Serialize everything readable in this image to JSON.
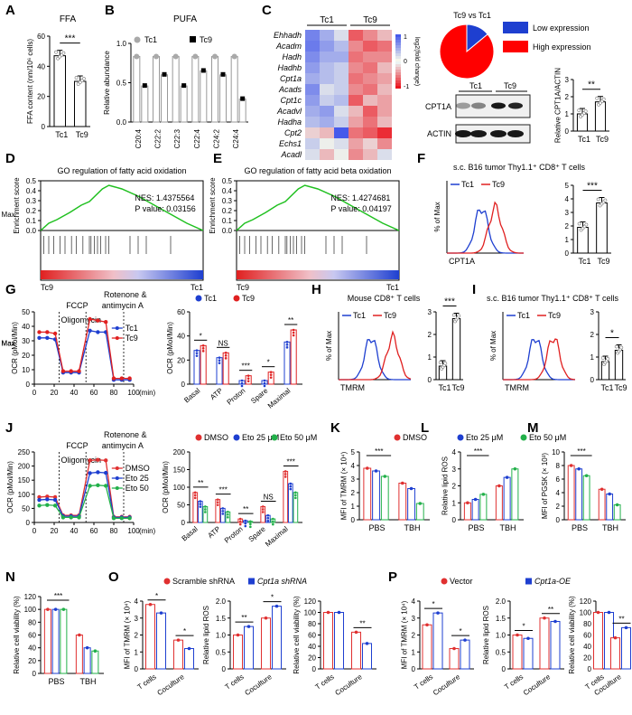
{
  "colors": {
    "tc1": "#1e3fd0",
    "tc9": "#e02020",
    "dmso": "#e03030",
    "eto25": "#1e3fd0",
    "eto50": "#22b04a",
    "gsea_line": "#20c020",
    "bar_gray": "#a9a9a9"
  },
  "panel_labels": [
    "A",
    "B",
    "C",
    "D",
    "E",
    "F",
    "G",
    "H",
    "I",
    "J",
    "K",
    "L",
    "M",
    "N",
    "O",
    "P"
  ],
  "panelA": {
    "title": "FFA",
    "ylabel": "FFA content (nm/10⁶ cells)",
    "yticks": [
      "0",
      "20",
      "40",
      "60"
    ],
    "categories": [
      "Tc1",
      "Tc9"
    ],
    "values": [
      47,
      30
    ],
    "ylim": [
      0,
      60
    ],
    "sig": "***"
  },
  "panelB": {
    "title": "PUFA",
    "ylabel": "Relative abundance",
    "yticks": [
      "0.0",
      "0.5",
      "1.0"
    ],
    "legend": [
      "Tc1",
      "Tc9"
    ],
    "categories": [
      "C20:4",
      "C22:2",
      "C22:3",
      "C22:4",
      "C24:2",
      "C24:4"
    ],
    "tc1": [
      1,
      1,
      1,
      1,
      1,
      1
    ],
    "tc9": [
      0.55,
      0.72,
      0.55,
      0.78,
      0.72,
      0.35
    ],
    "ylim": [
      0,
      1.2
    ]
  },
  "panelC": {
    "headers": [
      "Tc1",
      "Tc9"
    ],
    "genes": [
      "Ehhadh",
      "Acadm",
      "Hadh",
      "Hadhb",
      "Cpt1a",
      "Acads",
      "Cpt1c",
      "Acadvl",
      "Hadha",
      "Cpt2",
      "Echs1",
      "Acadl"
    ],
    "scale_label": "log2(fold change)",
    "scale_ticks": [
      "1",
      "0",
      "-1"
    ],
    "matrix": [
      [
        0.75,
        0.5,
        0.2,
        -0.7,
        -0.5,
        -0.3
      ],
      [
        0.8,
        0.6,
        0.4,
        -0.5,
        -0.7,
        -0.6
      ],
      [
        0.7,
        0.5,
        0.5,
        -0.6,
        -0.5,
        -0.5
      ],
      [
        0.6,
        0.4,
        0.3,
        -0.5,
        -0.6,
        -0.3
      ],
      [
        0.5,
        0.4,
        0.3,
        -0.6,
        -0.5,
        -0.4
      ],
      [
        0.7,
        0.2,
        0.3,
        -0.5,
        -0.6,
        -0.3
      ],
      [
        0.6,
        0.3,
        0.4,
        -0.7,
        -0.3,
        -0.4
      ],
      [
        0.5,
        0.6,
        0.2,
        -0.3,
        -0.7,
        -0.4
      ],
      [
        0.4,
        0.5,
        0.3,
        -0.4,
        -0.6,
        -0.3
      ],
      [
        -0.2,
        -0.3,
        1.0,
        -0.6,
        -0.7,
        -0.9
      ],
      [
        0.3,
        0.1,
        0.2,
        -0.4,
        -0.2,
        -0.5
      ],
      [
        0.2,
        -0.3,
        0.1,
        -0.5,
        -0.3,
        0.2
      ]
    ]
  },
  "panelC_pie": {
    "title": "Tc9 vs Tc1",
    "slices": [
      {
        "label": "Low expression",
        "value": 14
      },
      {
        "label": "High expression",
        "value": 86
      }
    ]
  },
  "panelC_blot": {
    "headers": [
      "Tc1",
      "Tc9"
    ],
    "rows": [
      "CPT1A",
      "ACTIN"
    ]
  },
  "panelC_bar": {
    "ylabel": "Relative CPT1A/ACTIN",
    "yticks": [
      "0",
      "1",
      "2",
      "3"
    ],
    "categories": [
      "Tc1",
      "Tc9"
    ],
    "values": [
      1.0,
      1.7
    ],
    "ylim": [
      0,
      3
    ],
    "sig": "**"
  },
  "panelD": {
    "title": "GO regulation of fatty acid oxidation",
    "ylabel": "Enrichment score",
    "yticks": [
      "0.0",
      "0.1",
      "0.2",
      "0.3",
      "0.4",
      "0.5"
    ],
    "nes": "NES: 1.4375564",
    "pvalue": "P value: 0.03156",
    "left": "Tc9",
    "right": "Tc1"
  },
  "panelE": {
    "title": "GO regulation of fatty acid beta oxidation",
    "ylabel": "Enrichment score",
    "yticks": [
      "0.0",
      "0.1",
      "0.2",
      "0.3",
      "0.4",
      "0.5"
    ],
    "nes": "NES: 1.4274681",
    "pvalue": "P value: 0.04197",
    "left": "Tc9",
    "right": "Tc1"
  },
  "panelF": {
    "title": "s.c. B16 tumor Thy1.1⁺ CD8⁺ T cells",
    "hist_ylabel": "% of Max",
    "hist_xlabel": "CPT1A",
    "legend": [
      "Tc1",
      "Tc9"
    ],
    "bar_ylabel": "MFI of CPT1A (× 10³)",
    "yticks": [
      "0",
      "1",
      "2",
      "3",
      "4",
      "5"
    ],
    "categories": [
      "Tc1",
      "Tc9"
    ],
    "values": [
      1.9,
      3.7
    ],
    "ylim": [
      0,
      5
    ],
    "sig": "***"
  },
  "panelG": {
    "ylabel": "OCR (pMol/Min)",
    "xlabel": "(min)",
    "yticks": [
      "0",
      "10",
      "20",
      "30",
      "40",
      "50"
    ],
    "xticks": [
      "0",
      "20",
      "40",
      "60",
      "80",
      "100"
    ],
    "annotations": [
      "Oligomycin",
      "FCCP",
      "Rotenone &",
      "antimycin A"
    ],
    "legend": [
      "Tc1",
      "Tc9"
    ],
    "x": [
      5,
      13,
      21,
      29,
      37,
      45,
      56,
      64,
      72,
      80,
      88,
      96
    ],
    "tc1": [
      32,
      32,
      31,
      8,
      8,
      8,
      37,
      36,
      36,
      3,
      3,
      3
    ],
    "tc9": [
      36,
      36,
      35,
      9,
      9,
      9,
      45,
      44,
      43,
      4,
      4,
      4
    ],
    "ylim": [
      0,
      50
    ]
  },
  "panelG_bar": {
    "ylabel": "OCR (pMol/Min)",
    "yticks": [
      "0",
      "20",
      "40",
      "60"
    ],
    "legend": [
      "Tc1",
      "Tc9"
    ],
    "categories": [
      "Basal",
      "ATP",
      "Proton",
      "Spare",
      "Maximal"
    ],
    "tc1": [
      28,
      22,
      3,
      3,
      35
    ],
    "tc9": [
      32,
      26,
      7,
      10,
      45
    ],
    "sig": [
      "*",
      "NS",
      "***",
      "*",
      "**"
    ],
    "ylim": [
      0,
      60
    ]
  },
  "panelH": {
    "title": "Mouse CD8⁺ T cells",
    "hist_ylabel": "% of Max",
    "hist_xlabel": "TMRM",
    "legend": [
      "Tc1",
      "Tc9"
    ],
    "bar_ylabel": "MFI of TMRM (× 10³)",
    "yticks": [
      "0",
      "1",
      "2",
      "3"
    ],
    "categories": [
      "Tc1",
      "Tc9"
    ],
    "values": [
      0.6,
      2.7
    ],
    "ylim": [
      0,
      3
    ],
    "sig": "***"
  },
  "panelI": {
    "title": "s.c. B16 tumor Thy1.1⁺ CD8⁺ T cells",
    "hist_ylabel": "% of Max",
    "hist_xlabel": "TMRM",
    "legend": [
      "Tc1",
      "Tc9"
    ],
    "bar_ylabel": "MFI of TMRM (× 10³)",
    "yticks": [
      "0",
      "1",
      "2",
      "3"
    ],
    "categories": [
      "Tc1",
      "Tc9"
    ],
    "values": [
      0.8,
      1.3
    ],
    "ylim": [
      0,
      3
    ],
    "sig": "*"
  },
  "panelJ": {
    "ylabel": "OCR (pMol/Min)",
    "xlabel": "(min)",
    "yticks": [
      "0",
      "50",
      "100",
      "150",
      "200",
      "250"
    ],
    "xticks": [
      "0",
      "20",
      "40",
      "60",
      "80",
      "100"
    ],
    "annotations": [
      "Oligomycin",
      "FCCP",
      "Rotenone &",
      "antimycin A"
    ],
    "legend": [
      "DMSO",
      "Eto 25",
      "Eto 50"
    ],
    "x": [
      5,
      13,
      21,
      29,
      37,
      45,
      56,
      64,
      72,
      80,
      88,
      96
    ],
    "dmso": [
      90,
      92,
      90,
      25,
      25,
      25,
      220,
      222,
      220,
      20,
      20,
      20
    ],
    "eto25": [
      80,
      82,
      80,
      22,
      22,
      22,
      175,
      178,
      176,
      18,
      18,
      18
    ],
    "eto50": [
      60,
      62,
      60,
      18,
      18,
      18,
      130,
      132,
      130,
      15,
      15,
      15
    ],
    "ylim": [
      0,
      250
    ]
  },
  "panelJ_bar": {
    "ylabel": "OCR (pMol/Min)",
    "yticks": [
      "0",
      "50",
      "100",
      "150",
      "200"
    ],
    "legend": [
      "DMSO",
      "Eto 25 μM",
      "Eto 50 μM"
    ],
    "categories": [
      "Basal",
      "ATP",
      "Proton",
      "Spare",
      "Maximal"
    ],
    "dmso": [
      85,
      65,
      10,
      45,
      145
    ],
    "eto25": [
      60,
      40,
      5,
      20,
      110
    ],
    "eto50": [
      45,
      30,
      3,
      10,
      85
    ],
    "sig": [
      "**",
      "***",
      "**",
      "NS",
      "***"
    ],
    "ylim": [
      0,
      200
    ]
  },
  "panelK": {
    "ylabel": "MFI of TMRM (× 10⁴)",
    "yticks": [
      "0",
      "1",
      "2",
      "3",
      "4",
      "5"
    ],
    "groups": [
      "PBS",
      "TBH"
    ],
    "dmso": [
      3.8,
      2.7
    ],
    "eto25": [
      3.6,
      2.3
    ],
    "eto50": [
      3.2,
      1.2
    ],
    "ylim": [
      0,
      5
    ],
    "sig": "***"
  },
  "panelKLM_legend": [
    "DMSO",
    "Eto 25 μM",
    "Eto 50 μM"
  ],
  "panelL": {
    "ylabel": "Relative lipid ROS",
    "yticks": [
      "0",
      "1",
      "2",
      "3",
      "4"
    ],
    "groups": [
      "PBS",
      "TBH"
    ],
    "dmso": [
      1.0,
      2.0
    ],
    "eto25": [
      1.2,
      2.5
    ],
    "eto50": [
      1.5,
      3.0
    ],
    "ylim": [
      0,
      4
    ],
    "sig": "***"
  },
  "panelM": {
    "ylabel": "MFI of PGSK (× 10³)",
    "yticks": [
      "0",
      "2",
      "4",
      "6",
      "8",
      "10"
    ],
    "groups": [
      "PBS",
      "TBH"
    ],
    "dmso": [
      8.0,
      4.5
    ],
    "eto25": [
      7.5,
      3.8
    ],
    "eto50": [
      6.5,
      2.2
    ],
    "ylim": [
      0,
      10
    ],
    "sig": "***"
  },
  "panelN": {
    "ylabel": "Relative cell viability (%)",
    "yticks": [
      "0",
      "20",
      "40",
      "60",
      "80",
      "100",
      "120"
    ],
    "groups": [
      "PBS",
      "TBH"
    ],
    "dmso": [
      100,
      60
    ],
    "eto25": [
      100,
      40
    ],
    "eto50": [
      100,
      35
    ],
    "ylim": [
      0,
      120
    ],
    "sig": "***"
  },
  "panelO": {
    "legend": [
      "Scramble shRNA",
      "Cpt1a shRNA"
    ],
    "charts": [
      {
        "ylabel": "MFI of TMRM (× 10⁴)",
        "yticks": [
          "0",
          "1",
          "2",
          "3",
          "4"
        ],
        "groups": [
          "T cells",
          "Coculture"
        ],
        "a": [
          3.8,
          1.7
        ],
        "b": [
          3.3,
          1.2
        ],
        "ylim": [
          0,
          4
        ],
        "sig": [
          "*",
          "*"
        ]
      },
      {
        "ylabel": "Relative lipid ROS",
        "yticks": [
          "0",
          "0.5",
          "1.0",
          "1.5",
          "2.0"
        ],
        "groups": [
          "T cells",
          "Coculture"
        ],
        "a": [
          1.0,
          1.5
        ],
        "b": [
          1.25,
          1.85
        ],
        "ylim": [
          0,
          2
        ],
        "sig": [
          "**",
          "*"
        ]
      },
      {
        "ylabel": "Relative cell viability (%)",
        "yticks": [
          "0",
          "20",
          "40",
          "60",
          "80",
          "100",
          "120"
        ],
        "groups": [
          "T cells",
          "Coculture"
        ],
        "a": [
          100,
          65
        ],
        "b": [
          100,
          45
        ],
        "ylim": [
          0,
          120
        ],
        "sig": [
          "",
          "**"
        ]
      }
    ]
  },
  "panelP": {
    "legend": [
      "Vector",
      "Cpt1a-OE"
    ],
    "charts": [
      {
        "ylabel": "MFI of TMRM (× 10⁴)",
        "yticks": [
          "0",
          "1",
          "2",
          "3",
          "4"
        ],
        "groups": [
          "T cells",
          "Coculture"
        ],
        "a": [
          2.6,
          1.2
        ],
        "b": [
          3.3,
          1.7
        ],
        "ylim": [
          0,
          4
        ],
        "sig": [
          "*",
          "*"
        ]
      },
      {
        "ylabel": "Relative lipid ROS",
        "yticks": [
          "0",
          "0.5",
          "1.0",
          "1.5",
          "2.0"
        ],
        "groups": [
          "T cells",
          "Coculture"
        ],
        "a": [
          1.0,
          1.5
        ],
        "b": [
          0.9,
          1.4
        ],
        "ylim": [
          0,
          2
        ],
        "sig": [
          "*",
          "**"
        ]
      },
      {
        "ylabel": "Relative cell viability (%)",
        "yticks": [
          "0",
          "20",
          "40",
          "60",
          "80",
          "100",
          "120"
        ],
        "groups": [
          "T cells",
          "Coculture"
        ],
        "a": [
          100,
          55
        ],
        "b": [
          100,
          73
        ],
        "ylim": [
          0,
          120
        ],
        "sig": [
          "",
          "**"
        ]
      }
    ]
  }
}
